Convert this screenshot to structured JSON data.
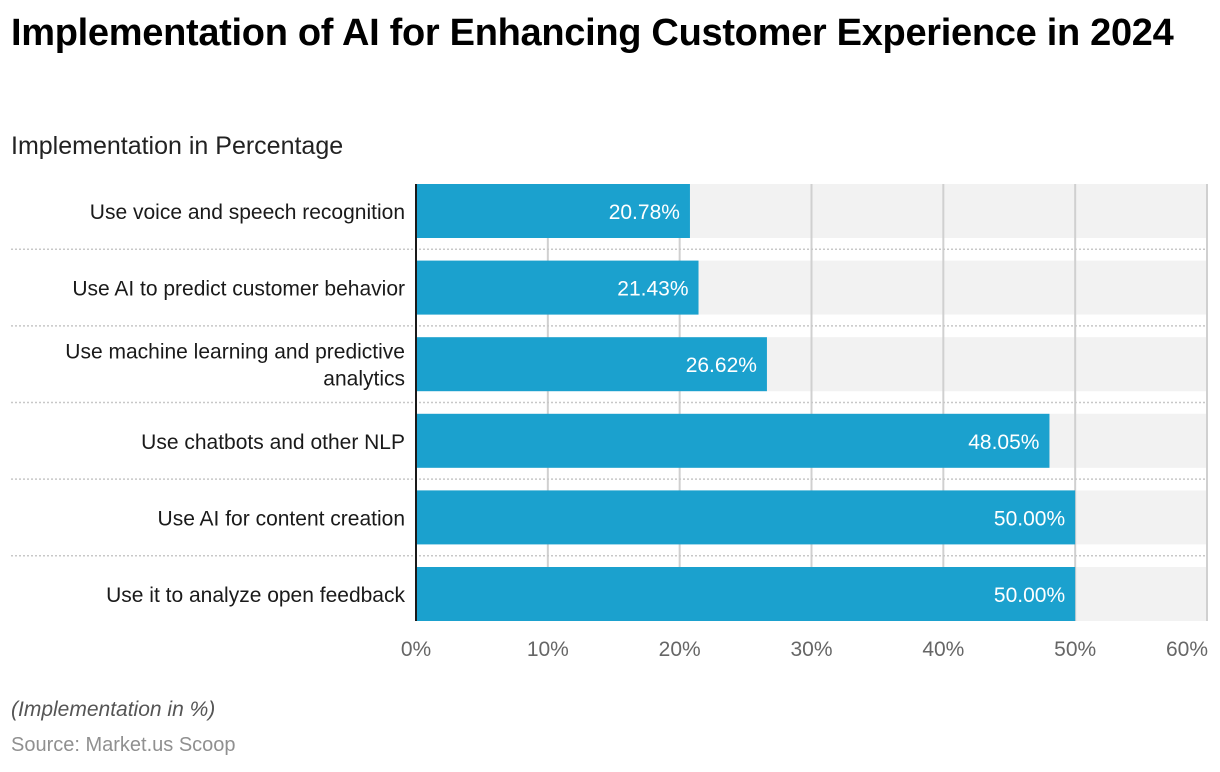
{
  "header": {
    "title": "Implementation of AI for Enhancing Customer Experience in 2024",
    "subtitle": "Implementation in Percentage"
  },
  "footer": {
    "note": "(Implementation in %)",
    "source": "Source: Market.us Scoop"
  },
  "colors": {
    "bar": "#1ba1ce",
    "track": "#f2f2f2",
    "grid": "#d0d0d0",
    "axis": "#1a1a1a",
    "label_text": "#ffffff"
  },
  "chart_data": {
    "type": "bar",
    "orientation": "horizontal",
    "title": "Implementation of AI for Enhancing Customer Experience in 2024",
    "subtitle": "Implementation in Percentage",
    "xlabel": "",
    "ylabel": "",
    "categories": [
      [
        "Use voice and speech recognition"
      ],
      [
        "Use AI to predict customer behavior"
      ],
      [
        "Use machine learning and predictive",
        "analytics"
      ],
      [
        "Use chatbots and other NLP"
      ],
      [
        "Use AI for content creation"
      ],
      [
        "Use it to analyze open feedback"
      ]
    ],
    "values": [
      20.78,
      21.43,
      26.62,
      48.05,
      50.0,
      50.0
    ],
    "value_labels": [
      "20.78%",
      "21.43%",
      "26.62%",
      "48.05%",
      "50.00%",
      "50.00%"
    ],
    "xlim": [
      0,
      60
    ],
    "xticks": [
      0,
      10,
      20,
      30,
      40,
      50,
      60
    ],
    "xtick_labels": [
      "0%",
      "10%",
      "20%",
      "30%",
      "40%",
      "50%",
      "60%"
    ],
    "grid": true,
    "legend": "none"
  }
}
